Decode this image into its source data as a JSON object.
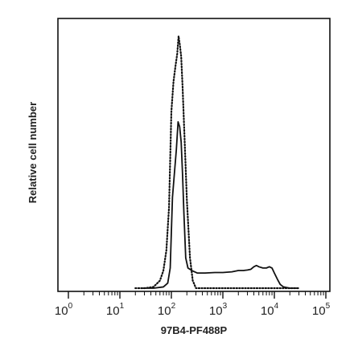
{
  "chart_data": {
    "type": "line",
    "xlabel": "97B4-PF488P",
    "ylabel": "Relative cell number",
    "x_scale": "log",
    "xlim": [
      1,
      100000
    ],
    "ylim": [
      0,
      1
    ],
    "x_ticks": [
      {
        "base": "10",
        "exp": "0",
        "value": 1
      },
      {
        "base": "10",
        "exp": "1",
        "value": 10
      },
      {
        "base": "10",
        "exp": "2",
        "value": 100
      },
      {
        "base": "10",
        "exp": "3",
        "value": 1000
      },
      {
        "base": "10",
        "exp": "4",
        "value": 10000
      },
      {
        "base": "10",
        "exp": "5",
        "value": 100000
      }
    ],
    "grid": false,
    "series": [
      {
        "style": "solid",
        "color": "#111111",
        "x": [
          25,
          45,
          70,
          85,
          95,
          105,
          115,
          125,
          135,
          145,
          155,
          165,
          175,
          190,
          210,
          250,
          320,
          450,
          700,
          1000,
          1500,
          2000,
          2500,
          3000,
          3500,
          4000,
          4500,
          5000,
          6000,
          7000,
          8000,
          9000,
          10000,
          11500,
          13000,
          15000,
          20000,
          30000
        ],
        "y": [
          0,
          0,
          0.005,
          0.02,
          0.08,
          0.36,
          0.46,
          0.55,
          0.66,
          0.64,
          0.58,
          0.45,
          0.3,
          0.12,
          0.08,
          0.07,
          0.06,
          0.06,
          0.062,
          0.062,
          0.065,
          0.07,
          0.07,
          0.072,
          0.075,
          0.085,
          0.09,
          0.085,
          0.08,
          0.08,
          0.085,
          0.08,
          0.06,
          0.035,
          0.015,
          0.005,
          0,
          0
        ]
      },
      {
        "style": "dotted",
        "color": "#111111",
        "x": [
          20,
          30,
          45,
          60,
          70,
          80,
          90,
          100,
          110,
          120,
          130,
          138,
          145,
          155,
          165,
          180,
          200,
          230,
          260,
          300,
          400,
          700,
          30000
        ],
        "y": [
          0,
          0,
          0.005,
          0.03,
          0.07,
          0.15,
          0.32,
          0.7,
          0.82,
          0.88,
          0.93,
          1.0,
          0.97,
          0.92,
          0.8,
          0.6,
          0.35,
          0.12,
          0.03,
          0,
          0,
          0,
          0
        ]
      }
    ]
  }
}
